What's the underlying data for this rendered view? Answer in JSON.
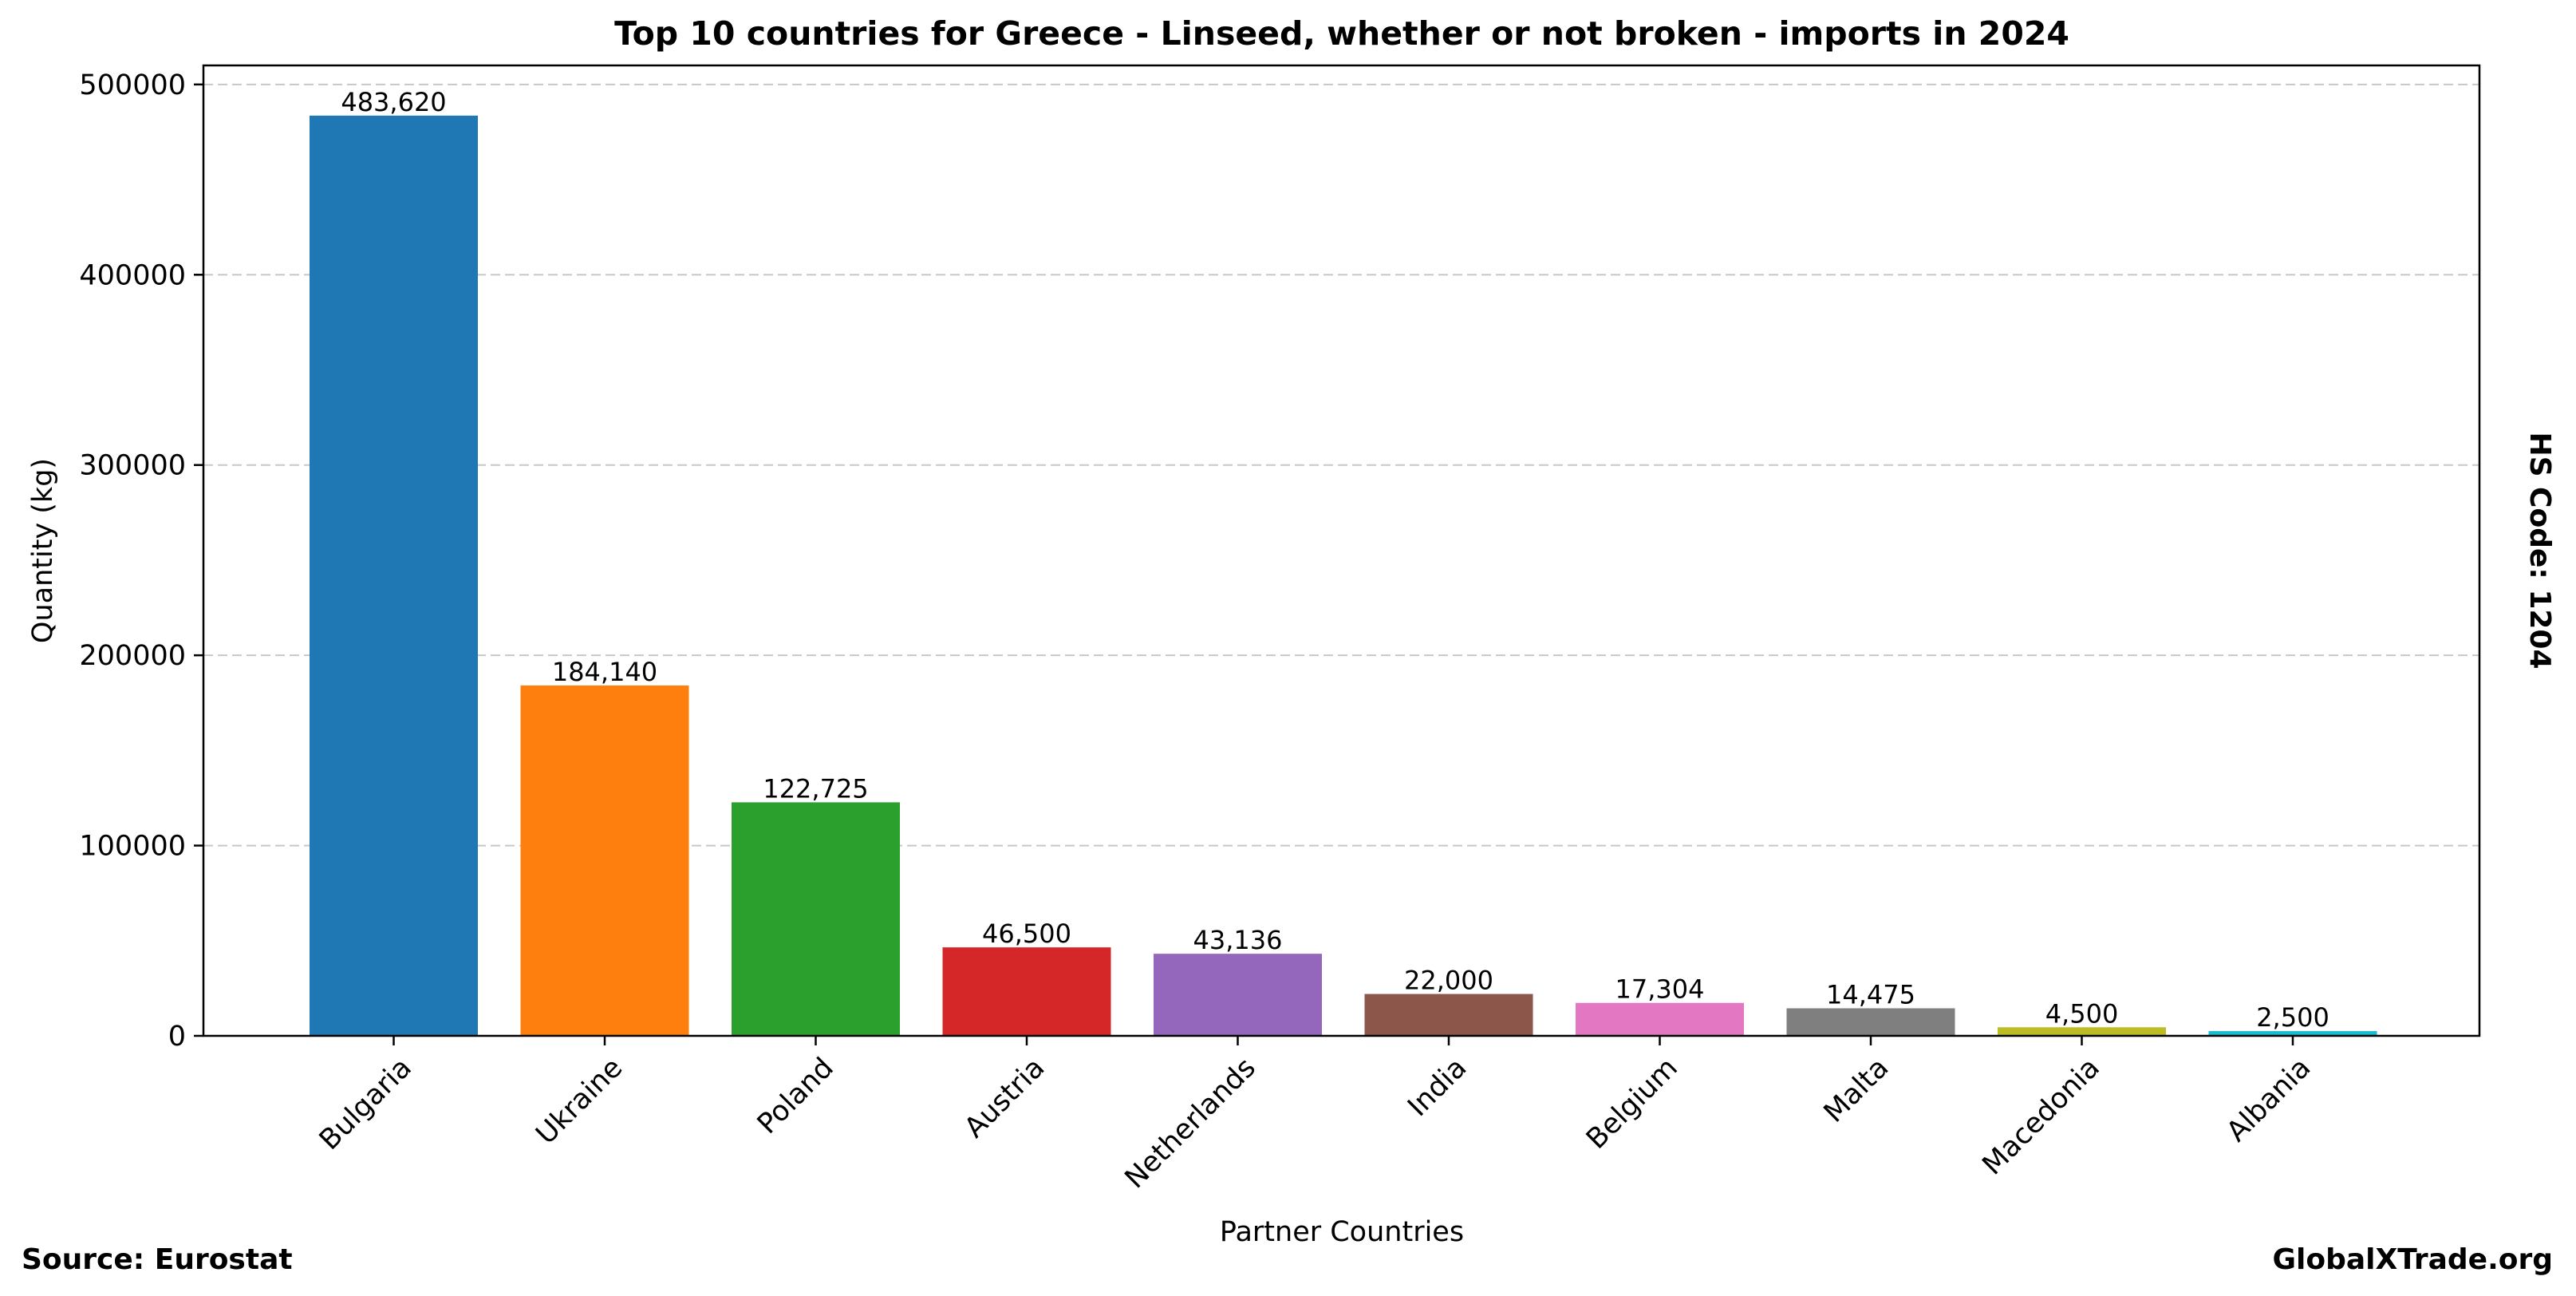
{
  "chart_data": {
    "type": "bar",
    "title": "Top 10 countries for Greece - Linseed, whether or not broken - imports in 2024",
    "xlabel": "Partner Countries",
    "ylabel": "Quantity (kg)",
    "categories": [
      "Bulgaria",
      "Ukraine",
      "Poland",
      "Austria",
      "Netherlands",
      "India",
      "Belgium",
      "Malta",
      "Macedonia",
      "Albania"
    ],
    "values": [
      483620,
      184140,
      122725,
      46500,
      43136,
      22000,
      17304,
      14475,
      4500,
      2500
    ],
    "value_labels": [
      "483,620",
      "184,140",
      "122,725",
      "46,500",
      "43,136",
      "22,000",
      "17,304",
      "14,475",
      "4,500",
      "2,500"
    ],
    "colors": [
      "#1f77b4",
      "#ff7f0e",
      "#2ca02c",
      "#d62728",
      "#9467bd",
      "#8c564b",
      "#e377c2",
      "#7f7f7f",
      "#bcbd22",
      "#17becf"
    ],
    "ylim": [
      0,
      510000
    ],
    "yticks": [
      0,
      100000,
      200000,
      300000,
      400000,
      500000
    ],
    "ytick_labels": [
      "0",
      "100000",
      "200000",
      "300000",
      "400000",
      "500000"
    ],
    "grid": "y-dashed",
    "legend": "none"
  },
  "footer": {
    "source": "Source: Eurostat",
    "brand": "GlobalXTrade.org"
  },
  "side_label": "HS Code: 1204"
}
